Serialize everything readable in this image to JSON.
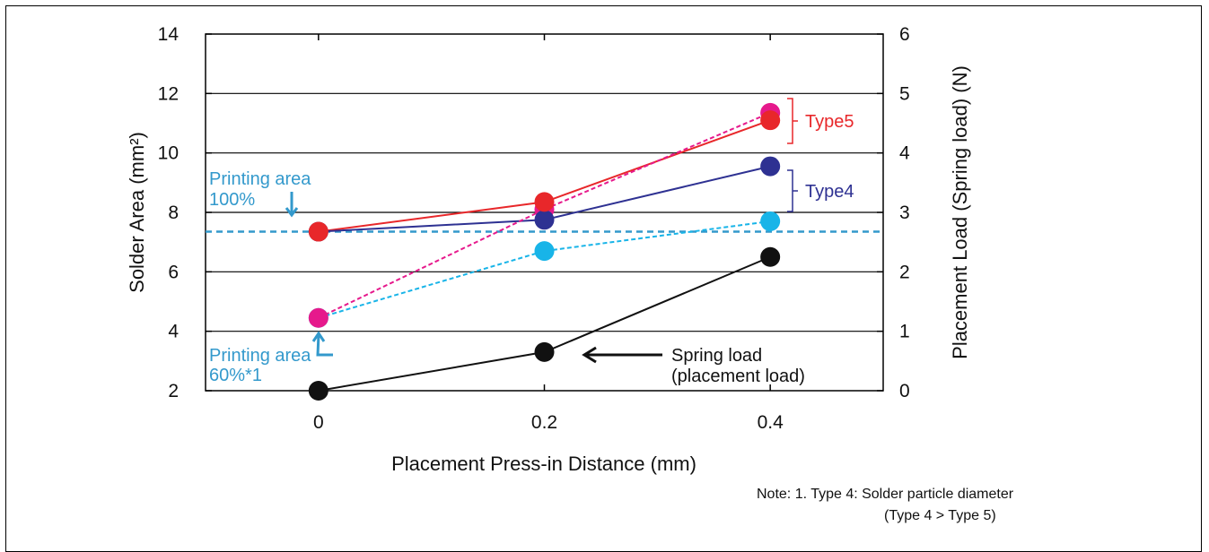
{
  "chart_data": {
    "type": "line",
    "x": [
      0,
      0.2,
      0.4
    ],
    "x_ticks": [
      "0",
      "0.2",
      "0.4"
    ],
    "xlim": [
      -0.1,
      0.5
    ],
    "xlabel": "Placement Press-in Distance (mm)",
    "ylabel_left": "Solder Area (mm²)",
    "ylim_left": [
      2,
      14
    ],
    "y_ticks_left": [
      2,
      4,
      6,
      8,
      10,
      12,
      14
    ],
    "ylabel_right": "Placement Load (Spring load) (N)",
    "ylim_right": [
      0,
      6
    ],
    "y_ticks_right": [
      0,
      1,
      2,
      3,
      4,
      5,
      6
    ],
    "grid": true,
    "reference_line": {
      "axis": "left",
      "y": 7.35,
      "color": "#3399cc"
    },
    "series": [
      {
        "name": "Type5",
        "axis": "left",
        "values": [
          7.35,
          8.35,
          11.1
        ],
        "color": "#e8272a",
        "style": "solid",
        "marker_color": "#e8272a"
      },
      {
        "name": "Type4",
        "axis": "left",
        "values": [
          7.35,
          7.75,
          9.55
        ],
        "color": "#2e3192",
        "style": "solid",
        "marker_color": "#2e3192"
      },
      {
        "name": "Type5",
        "axis": "left",
        "values": [
          4.45,
          8.1,
          11.35
        ],
        "color": "#e6198c",
        "style": "dashed",
        "marker_color": "#e6198c"
      },
      {
        "name": "Type4",
        "axis": "left",
        "values": [
          4.45,
          6.7,
          7.7
        ],
        "color": "#18b4e8",
        "style": "dashed",
        "marker_color": "#18b4e8"
      },
      {
        "name": "Spring load (placement load)",
        "axis": "right",
        "values": [
          0,
          0.65,
          2.25
        ],
        "color": "#111111",
        "style": "solid",
        "marker_color": "#111111"
      }
    ],
    "annotations": {
      "type5": "Type5",
      "type4": "Type4",
      "printing_100_line1": "Printing area",
      "printing_100_line2": "100%",
      "printing_60_line1": "Printing area",
      "printing_60_line2": "60%*1",
      "spring_line1": "Spring load",
      "spring_line2": "(placement load)"
    },
    "note_line1": "Note: 1. Type 4: Solder particle diameter",
    "note_line2": "(Type 4 > Type 5)"
  },
  "colors": {
    "type5": "#e8272a",
    "type4": "#2e3192",
    "printing_area": "#3399cc",
    "spring": "#111111"
  }
}
